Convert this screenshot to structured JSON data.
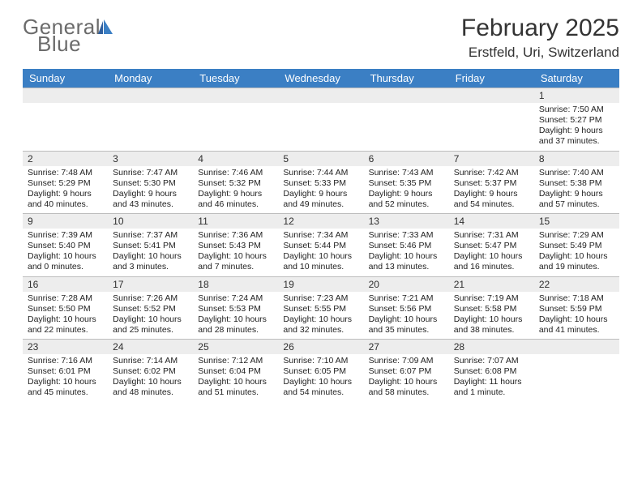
{
  "logo": {
    "word1": "General",
    "word2": "Blue"
  },
  "title": "February 2025",
  "subtitle": "Erstfeld, Uri, Switzerland",
  "colors": {
    "header_bg": "#3b7fc4",
    "header_text": "#ffffff",
    "daynum_bg": "#ededed",
    "border": "#bdbdbd",
    "logo_gray": "#6b6b6b",
    "logo_blue": "#3b7fc4"
  },
  "day_headers": [
    "Sunday",
    "Monday",
    "Tuesday",
    "Wednesday",
    "Thursday",
    "Friday",
    "Saturday"
  ],
  "weeks": [
    [
      null,
      null,
      null,
      null,
      null,
      null,
      {
        "n": "1",
        "sunrise": "7:50 AM",
        "sunset": "5:27 PM",
        "daylight": "9 hours and 37 minutes."
      }
    ],
    [
      {
        "n": "2",
        "sunrise": "7:48 AM",
        "sunset": "5:29 PM",
        "daylight": "9 hours and 40 minutes."
      },
      {
        "n": "3",
        "sunrise": "7:47 AM",
        "sunset": "5:30 PM",
        "daylight": "9 hours and 43 minutes."
      },
      {
        "n": "4",
        "sunrise": "7:46 AM",
        "sunset": "5:32 PM",
        "daylight": "9 hours and 46 minutes."
      },
      {
        "n": "5",
        "sunrise": "7:44 AM",
        "sunset": "5:33 PM",
        "daylight": "9 hours and 49 minutes."
      },
      {
        "n": "6",
        "sunrise": "7:43 AM",
        "sunset": "5:35 PM",
        "daylight": "9 hours and 52 minutes."
      },
      {
        "n": "7",
        "sunrise": "7:42 AM",
        "sunset": "5:37 PM",
        "daylight": "9 hours and 54 minutes."
      },
      {
        "n": "8",
        "sunrise": "7:40 AM",
        "sunset": "5:38 PM",
        "daylight": "9 hours and 57 minutes."
      }
    ],
    [
      {
        "n": "9",
        "sunrise": "7:39 AM",
        "sunset": "5:40 PM",
        "daylight": "10 hours and 0 minutes."
      },
      {
        "n": "10",
        "sunrise": "7:37 AM",
        "sunset": "5:41 PM",
        "daylight": "10 hours and 3 minutes."
      },
      {
        "n": "11",
        "sunrise": "7:36 AM",
        "sunset": "5:43 PM",
        "daylight": "10 hours and 7 minutes."
      },
      {
        "n": "12",
        "sunrise": "7:34 AM",
        "sunset": "5:44 PM",
        "daylight": "10 hours and 10 minutes."
      },
      {
        "n": "13",
        "sunrise": "7:33 AM",
        "sunset": "5:46 PM",
        "daylight": "10 hours and 13 minutes."
      },
      {
        "n": "14",
        "sunrise": "7:31 AM",
        "sunset": "5:47 PM",
        "daylight": "10 hours and 16 minutes."
      },
      {
        "n": "15",
        "sunrise": "7:29 AM",
        "sunset": "5:49 PM",
        "daylight": "10 hours and 19 minutes."
      }
    ],
    [
      {
        "n": "16",
        "sunrise": "7:28 AM",
        "sunset": "5:50 PM",
        "daylight": "10 hours and 22 minutes."
      },
      {
        "n": "17",
        "sunrise": "7:26 AM",
        "sunset": "5:52 PM",
        "daylight": "10 hours and 25 minutes."
      },
      {
        "n": "18",
        "sunrise": "7:24 AM",
        "sunset": "5:53 PM",
        "daylight": "10 hours and 28 minutes."
      },
      {
        "n": "19",
        "sunrise": "7:23 AM",
        "sunset": "5:55 PM",
        "daylight": "10 hours and 32 minutes."
      },
      {
        "n": "20",
        "sunrise": "7:21 AM",
        "sunset": "5:56 PM",
        "daylight": "10 hours and 35 minutes."
      },
      {
        "n": "21",
        "sunrise": "7:19 AM",
        "sunset": "5:58 PM",
        "daylight": "10 hours and 38 minutes."
      },
      {
        "n": "22",
        "sunrise": "7:18 AM",
        "sunset": "5:59 PM",
        "daylight": "10 hours and 41 minutes."
      }
    ],
    [
      {
        "n": "23",
        "sunrise": "7:16 AM",
        "sunset": "6:01 PM",
        "daylight": "10 hours and 45 minutes."
      },
      {
        "n": "24",
        "sunrise": "7:14 AM",
        "sunset": "6:02 PM",
        "daylight": "10 hours and 48 minutes."
      },
      {
        "n": "25",
        "sunrise": "7:12 AM",
        "sunset": "6:04 PM",
        "daylight": "10 hours and 51 minutes."
      },
      {
        "n": "26",
        "sunrise": "7:10 AM",
        "sunset": "6:05 PM",
        "daylight": "10 hours and 54 minutes."
      },
      {
        "n": "27",
        "sunrise": "7:09 AM",
        "sunset": "6:07 PM",
        "daylight": "10 hours and 58 minutes."
      },
      {
        "n": "28",
        "sunrise": "7:07 AM",
        "sunset": "6:08 PM",
        "daylight": "11 hours and 1 minute."
      },
      null
    ]
  ],
  "labels": {
    "sunrise": "Sunrise:",
    "sunset": "Sunset:",
    "daylight": "Daylight:"
  }
}
